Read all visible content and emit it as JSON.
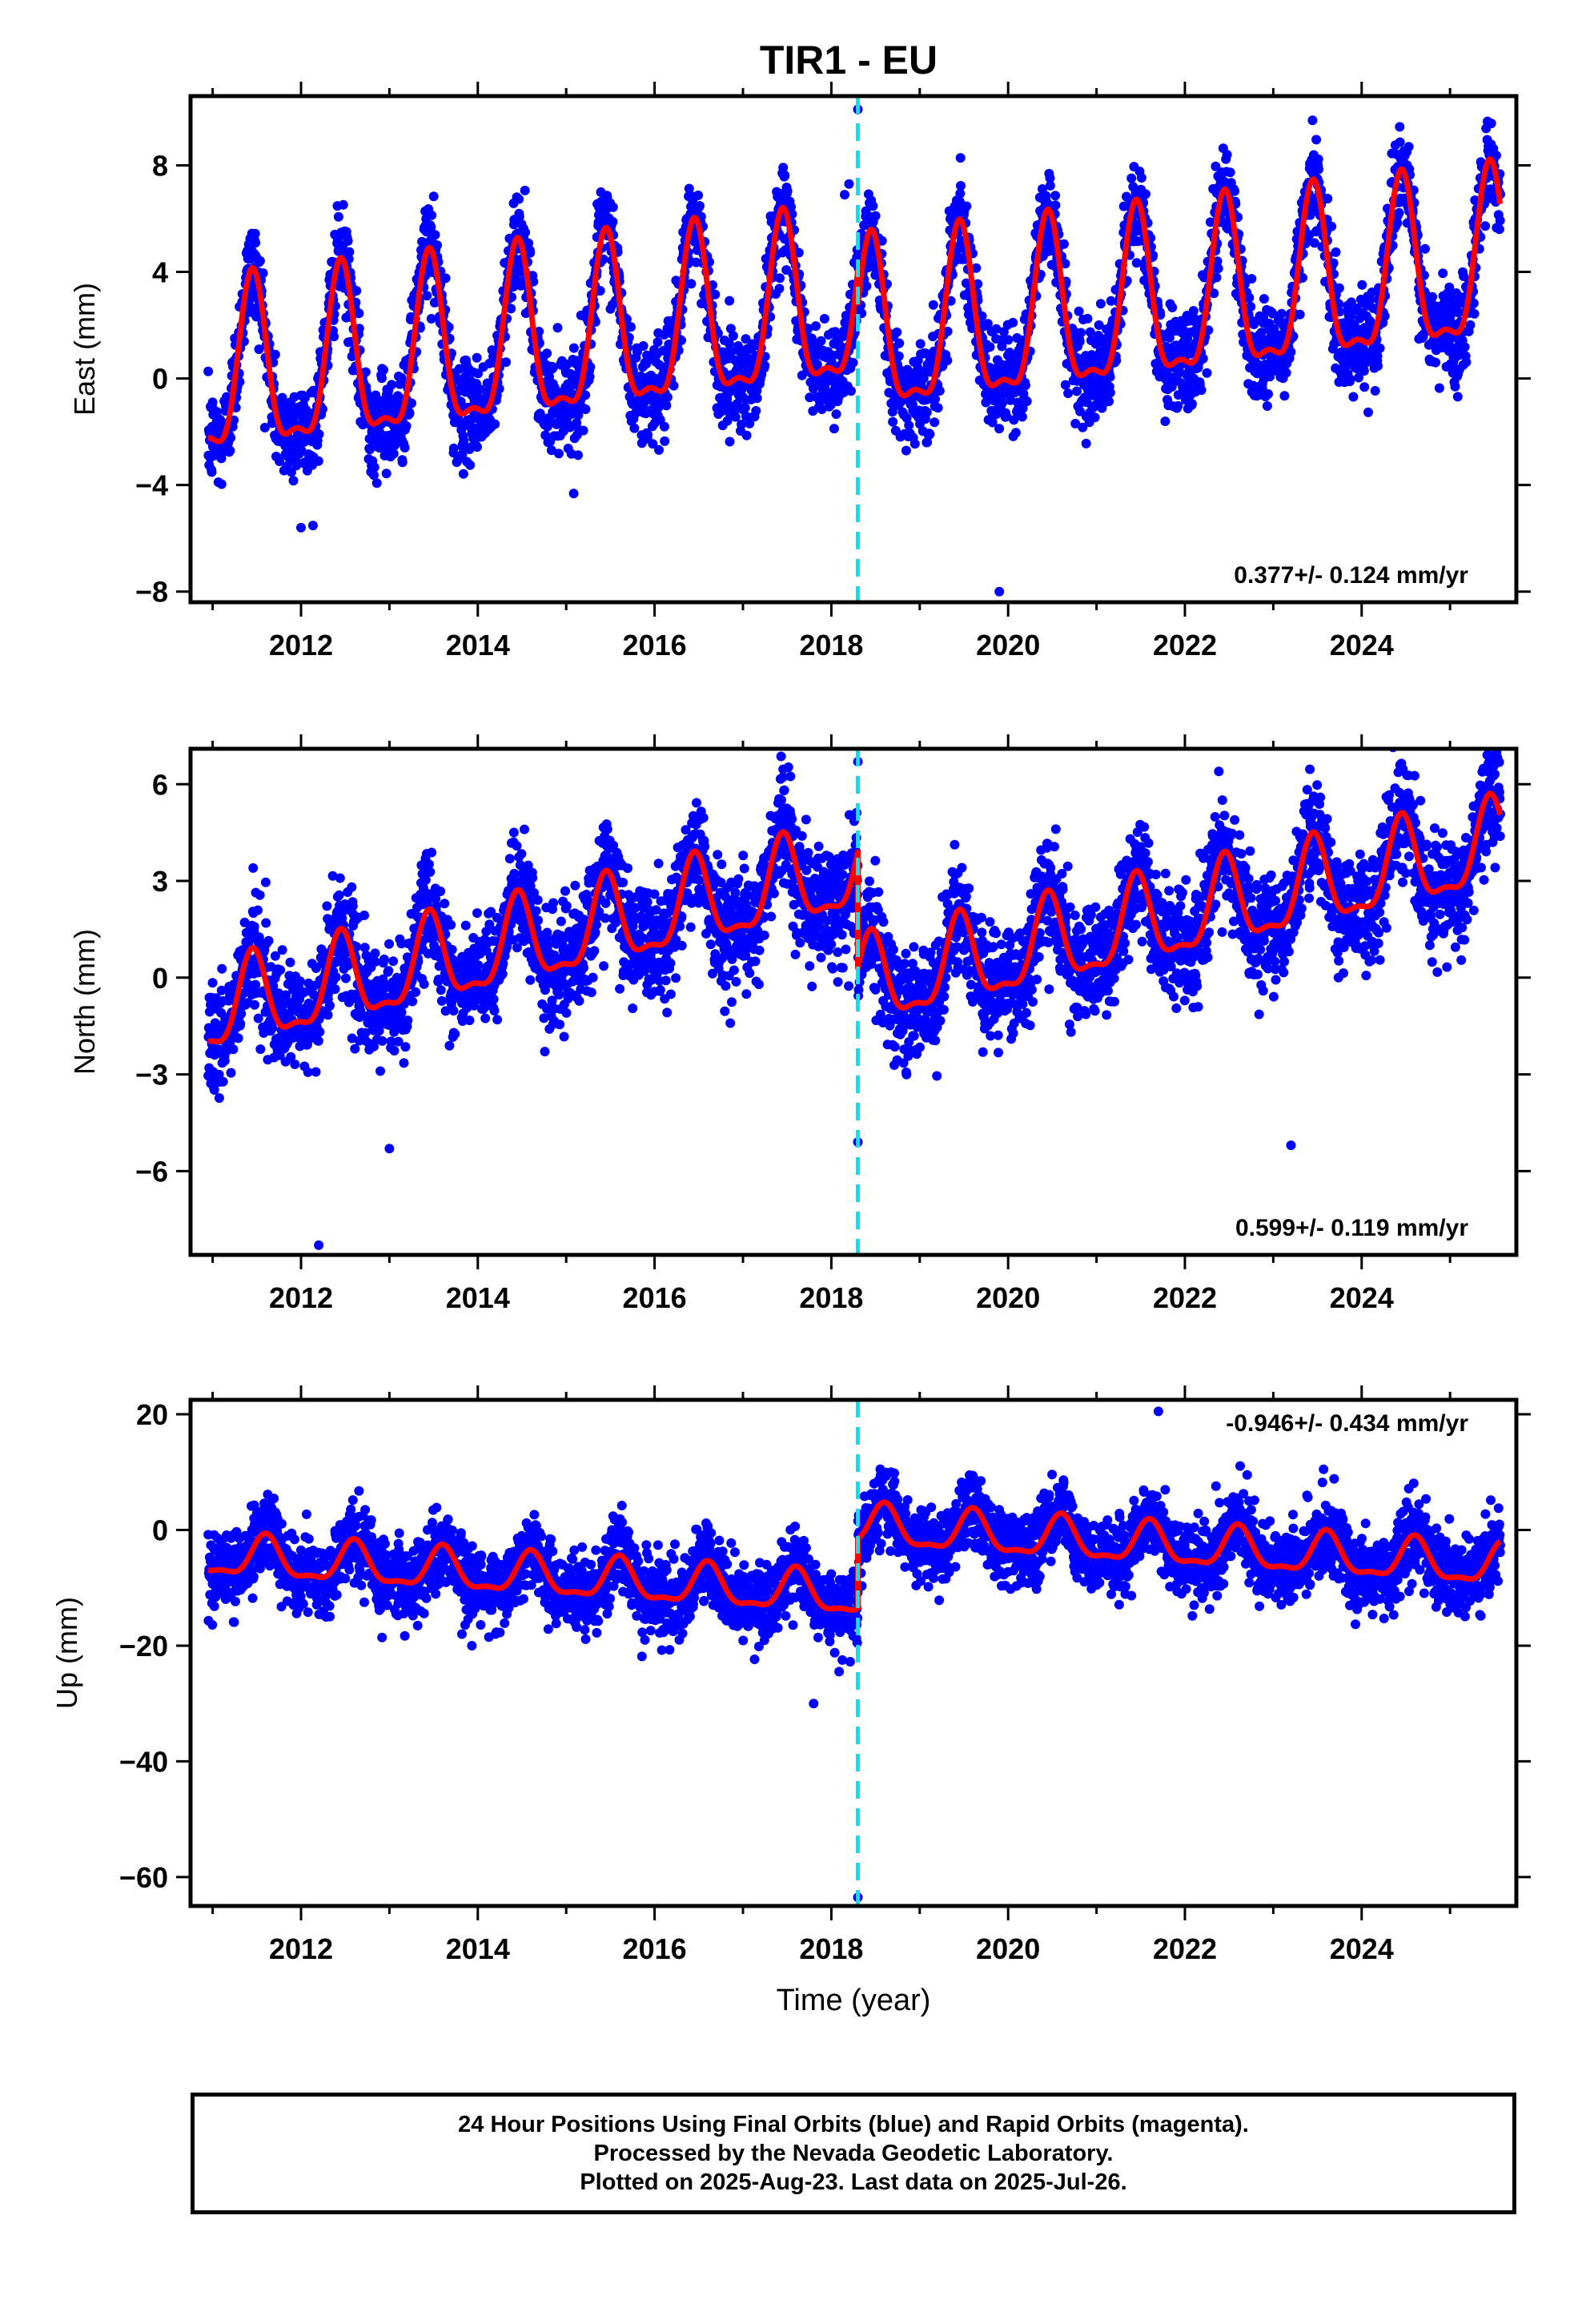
{
  "chart_data": [
    {
      "type": "scatter",
      "title": "TIR1 - EU",
      "ylabel": "East (mm)",
      "xlabel": "",
      "xlim": [
        2010.75,
        2025.75
      ],
      "ylim": [
        -8.4,
        10.6
      ],
      "xticks": [
        2012,
        2014,
        2016,
        2018,
        2020,
        2022,
        2024
      ],
      "xtick_labels": [
        "2012",
        "2014",
        "2016",
        "2018",
        "2020",
        "2022",
        "2024"
      ],
      "yticks": [
        -8,
        -4,
        0,
        4,
        8
      ],
      "ytick_labels": [
        "−8",
        "−4",
        "0",
        "4",
        "8"
      ],
      "rate_text": "0.377+/- 0.124 mm/yr",
      "offset_year": 2018.3,
      "colors": {
        "points": "#0000ff",
        "model": "#ff0000",
        "offset": "#00e5ee"
      },
      "series": [
        {
          "role": "observations",
          "x_range": [
            2010.95,
            2025.57
          ],
          "trend": -0.2,
          "trend_rate": 0.377,
          "jump_at_offset": -1.2,
          "amplitude": 3.1,
          "scatter_sd": 0.9,
          "annual_peak_phase": 0.45
        },
        {
          "role": "model",
          "color": "#ff0000"
        }
      ],
      "outliers": [
        [
          2018.3,
          10.1
        ],
        [
          2018.2,
          7.3
        ],
        [
          2018.15,
          6.9
        ],
        [
          2019.9,
          -8.0
        ],
        [
          2012.0,
          -5.6
        ]
      ]
    },
    {
      "type": "scatter",
      "title": "",
      "ylabel": "North (mm)",
      "xlabel": "",
      "xlim": [
        2010.75,
        2025.75
      ],
      "ylim": [
        -8.6,
        7.1
      ],
      "xticks": [
        2012,
        2014,
        2016,
        2018,
        2020,
        2022,
        2024
      ],
      "xtick_labels": [
        "2012",
        "2014",
        "2016",
        "2018",
        "2020",
        "2022",
        "2024"
      ],
      "yticks": [
        -6,
        -3,
        0,
        3,
        6
      ],
      "ytick_labels": [
        "−6",
        "−3",
        "0",
        "3",
        "6"
      ],
      "rate_text": "0.599+/- 0.119 mm/yr",
      "offset_year": 2018.3,
      "colors": {
        "points": "#0000ff",
        "model": "#ff0000",
        "offset": "#00e5ee"
      },
      "series": [
        {
          "role": "observations",
          "x_range": [
            2010.95,
            2025.57
          ],
          "trend": -1.1,
          "trend_rate": 0.599,
          "jump_at_offset": -3.6,
          "amplitude": 1.3,
          "scatter_sd": 0.85,
          "annual_peak_phase": 0.45
        },
        {
          "role": "model",
          "color": "#ff0000"
        }
      ],
      "outliers": [
        [
          2018.3,
          6.7
        ],
        [
          2018.3,
          -5.1
        ],
        [
          2012.2,
          -8.3
        ],
        [
          2023.2,
          -5.2
        ],
        [
          2013.0,
          -5.3
        ]
      ]
    },
    {
      "type": "scatter",
      "title": "",
      "ylabel": "Up (mm)",
      "xlabel": "Time (year)",
      "xlim": [
        2010.75,
        2025.75
      ],
      "ylim": [
        -65,
        22.5
      ],
      "xticks": [
        2012,
        2014,
        2016,
        2018,
        2020,
        2022,
        2024
      ],
      "xtick_labels": [
        "2012",
        "2014",
        "2016",
        "2018",
        "2020",
        "2022",
        "2024"
      ],
      "yticks": [
        -60,
        -40,
        -20,
        0,
        20
      ],
      "ytick_labels": [
        "−60",
        "−40",
        "−20",
        "0",
        "20"
      ],
      "rate_text": "-0.946+/- 0.434 mm/yr",
      "offset_year": 2018.3,
      "colors": {
        "points": "#0000ff",
        "model": "#ff0000",
        "offset": "#00e5ee"
      },
      "series": [
        {
          "role": "observations",
          "x_range": [
            2010.95,
            2025.57
          ],
          "trend": -4.6,
          "trend_rate": -0.946,
          "jump_at_offset": 12.0,
          "amplitude": 3.4,
          "scatter_sd": 3.2,
          "annual_peak_phase": 0.6
        },
        {
          "role": "model",
          "color": "#ff0000"
        }
      ],
      "outliers": [
        [
          2018.3,
          -63.5
        ],
        [
          2017.8,
          -30.0
        ],
        [
          2021.7,
          20.5
        ],
        [
          2014.2,
          -18.0
        ]
      ]
    }
  ],
  "footer": {
    "line1": "24 Hour Positions Using Final Orbits (blue) and Rapid Orbits (magenta).",
    "line2": "Processed by the Nevada Geodetic Laboratory.",
    "line3": "Plotted on 2025-Aug-23. Last data on 2025-Jul-26."
  }
}
